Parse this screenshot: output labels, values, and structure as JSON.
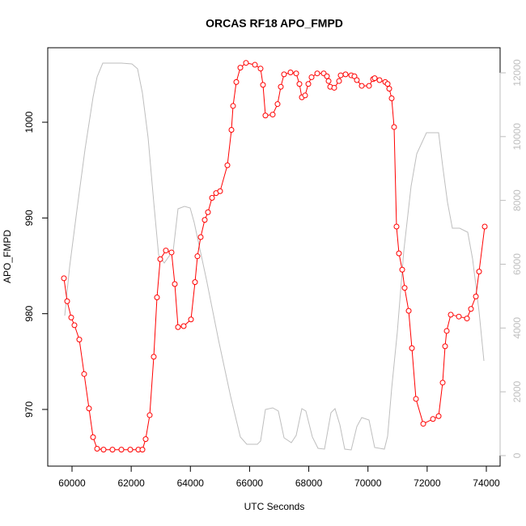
{
  "chart_data": {
    "type": "line",
    "title": "ORCAS RF18 APO_FMPD",
    "xlabel": "UTC Seconds",
    "ylabel": "APO_FMPD",
    "xlim": [
      59180,
      74465
    ],
    "xticks": [
      60000,
      62000,
      64000,
      66000,
      68000,
      70000,
      72000,
      74000
    ],
    "ylim": [
      964.08,
      1007.78
    ],
    "yticks": [
      970,
      980,
      990,
      1000
    ],
    "y2lim": [
      -330,
      12786
    ],
    "y2ticks": [
      0,
      2000,
      4000,
      6000,
      8000,
      10000,
      12000
    ],
    "series": [
      {
        "color": "#bebebe",
        "axis": "y2",
        "markers": false,
        "x": [
          59754,
          59918,
          60164,
          60437,
          60711,
          60848,
          61039,
          61668,
          62023,
          62215,
          62379,
          62570,
          62762,
          62926,
          63117,
          63309,
          63418,
          63582,
          63801,
          63992,
          64129,
          64539,
          64950,
          65360,
          65688,
          65907,
          66262,
          66371,
          66535,
          66781,
          66972,
          67164,
          67410,
          67575,
          67766,
          67903,
          68122,
          68313,
          68532,
          68751,
          68888,
          69052,
          69216,
          69434,
          69625,
          69790,
          70036,
          70227,
          70555,
          70665,
          70801,
          70993,
          71212,
          71458,
          71649,
          71977,
          72388,
          72524,
          72688,
          72852,
          73098,
          73372,
          73536,
          73755,
          73919
        ],
        "values": [
          4389,
          5911,
          7686,
          9589,
          11238,
          11872,
          12303,
          12303,
          12278,
          12126,
          11365,
          9970,
          7940,
          6291,
          6038,
          6291,
          6418,
          7737,
          7813,
          7763,
          7306,
          5530,
          3628,
          1852,
          583,
          355,
          355,
          457,
          1446,
          1497,
          1395,
          558,
          406,
          634,
          1471,
          1395,
          583,
          228,
          203,
          1344,
          1471,
          964,
          203,
          178,
          913,
          1192,
          1116,
          254,
          203,
          609,
          2106,
          3881,
          6418,
          8447,
          9462,
          10122,
          10122,
          9082,
          7940,
          7128,
          7128,
          7002,
          6164,
          4515,
          2968
        ]
      },
      {
        "color": "#ff0000",
        "markers": true,
        "x": [
          59727,
          59836,
          59973,
          60082,
          60246,
          60410,
          60574,
          60711,
          60848,
          61066,
          61367,
          61668,
          61969,
          62242,
          62379,
          62488,
          62625,
          62762,
          62871,
          62981,
          63172,
          63363,
          63473,
          63582,
          63774,
          64020,
          64156,
          64238,
          64348,
          64485,
          64594,
          64731,
          64868,
          65004,
          65250,
          65387,
          65442,
          65551,
          65688,
          65879,
          66180,
          66371,
          66453,
          66535,
          66781,
          66945,
          67055,
          67164,
          67383,
          67575,
          67684,
          67766,
          67876,
          67985,
          68094,
          68286,
          68505,
          68614,
          68669,
          68724,
          68860,
          69024,
          69079,
          69243,
          69434,
          69543,
          69625,
          69790,
          70036,
          70172,
          70227,
          70391,
          70583,
          70665,
          70719,
          70801,
          70883,
          70965,
          71047,
          71157,
          71239,
          71376,
          71485,
          71622,
          71868,
          72196,
          72388,
          72524,
          72606,
          72661,
          72798,
          73071,
          73345,
          73481,
          73646,
          73755,
          73946
        ],
        "values": [
          983.7,
          981.3,
          979.6,
          978.8,
          977.3,
          973.7,
          970.1,
          967.1,
          965.9,
          965.8,
          965.8,
          965.8,
          965.8,
          965.8,
          965.8,
          966.9,
          969.4,
          975.5,
          981.7,
          985.7,
          986.6,
          986.4,
          983.1,
          978.6,
          978.7,
          979.4,
          983.3,
          986.0,
          988.0,
          989.8,
          990.6,
          992.1,
          992.6,
          992.8,
          995.5,
          999.2,
          1001.7,
          1004.2,
          1005.7,
          1006.2,
          1006.0,
          1005.6,
          1003.9,
          1000.7,
          1000.8,
          1001.9,
          1003.7,
          1005.0,
          1005.2,
          1005.1,
          1004.0,
          1002.6,
          1002.8,
          1004.0,
          1004.7,
          1005.1,
          1005.1,
          1004.8,
          1004.3,
          1003.7,
          1003.6,
          1004.3,
          1004.9,
          1005.0,
          1004.9,
          1004.8,
          1004.4,
          1003.8,
          1003.8,
          1004.5,
          1004.6,
          1004.4,
          1004.2,
          1004.0,
          1003.5,
          1002.5,
          999.5,
          989.1,
          986.3,
          984.6,
          982.7,
          980.3,
          976.4,
          971.1,
          968.5,
          969.0,
          969.3,
          972.8,
          976.6,
          978.2,
          979.9,
          979.7,
          979.5,
          980.5,
          981.8,
          984.4,
          989.1
        ]
      }
    ]
  }
}
